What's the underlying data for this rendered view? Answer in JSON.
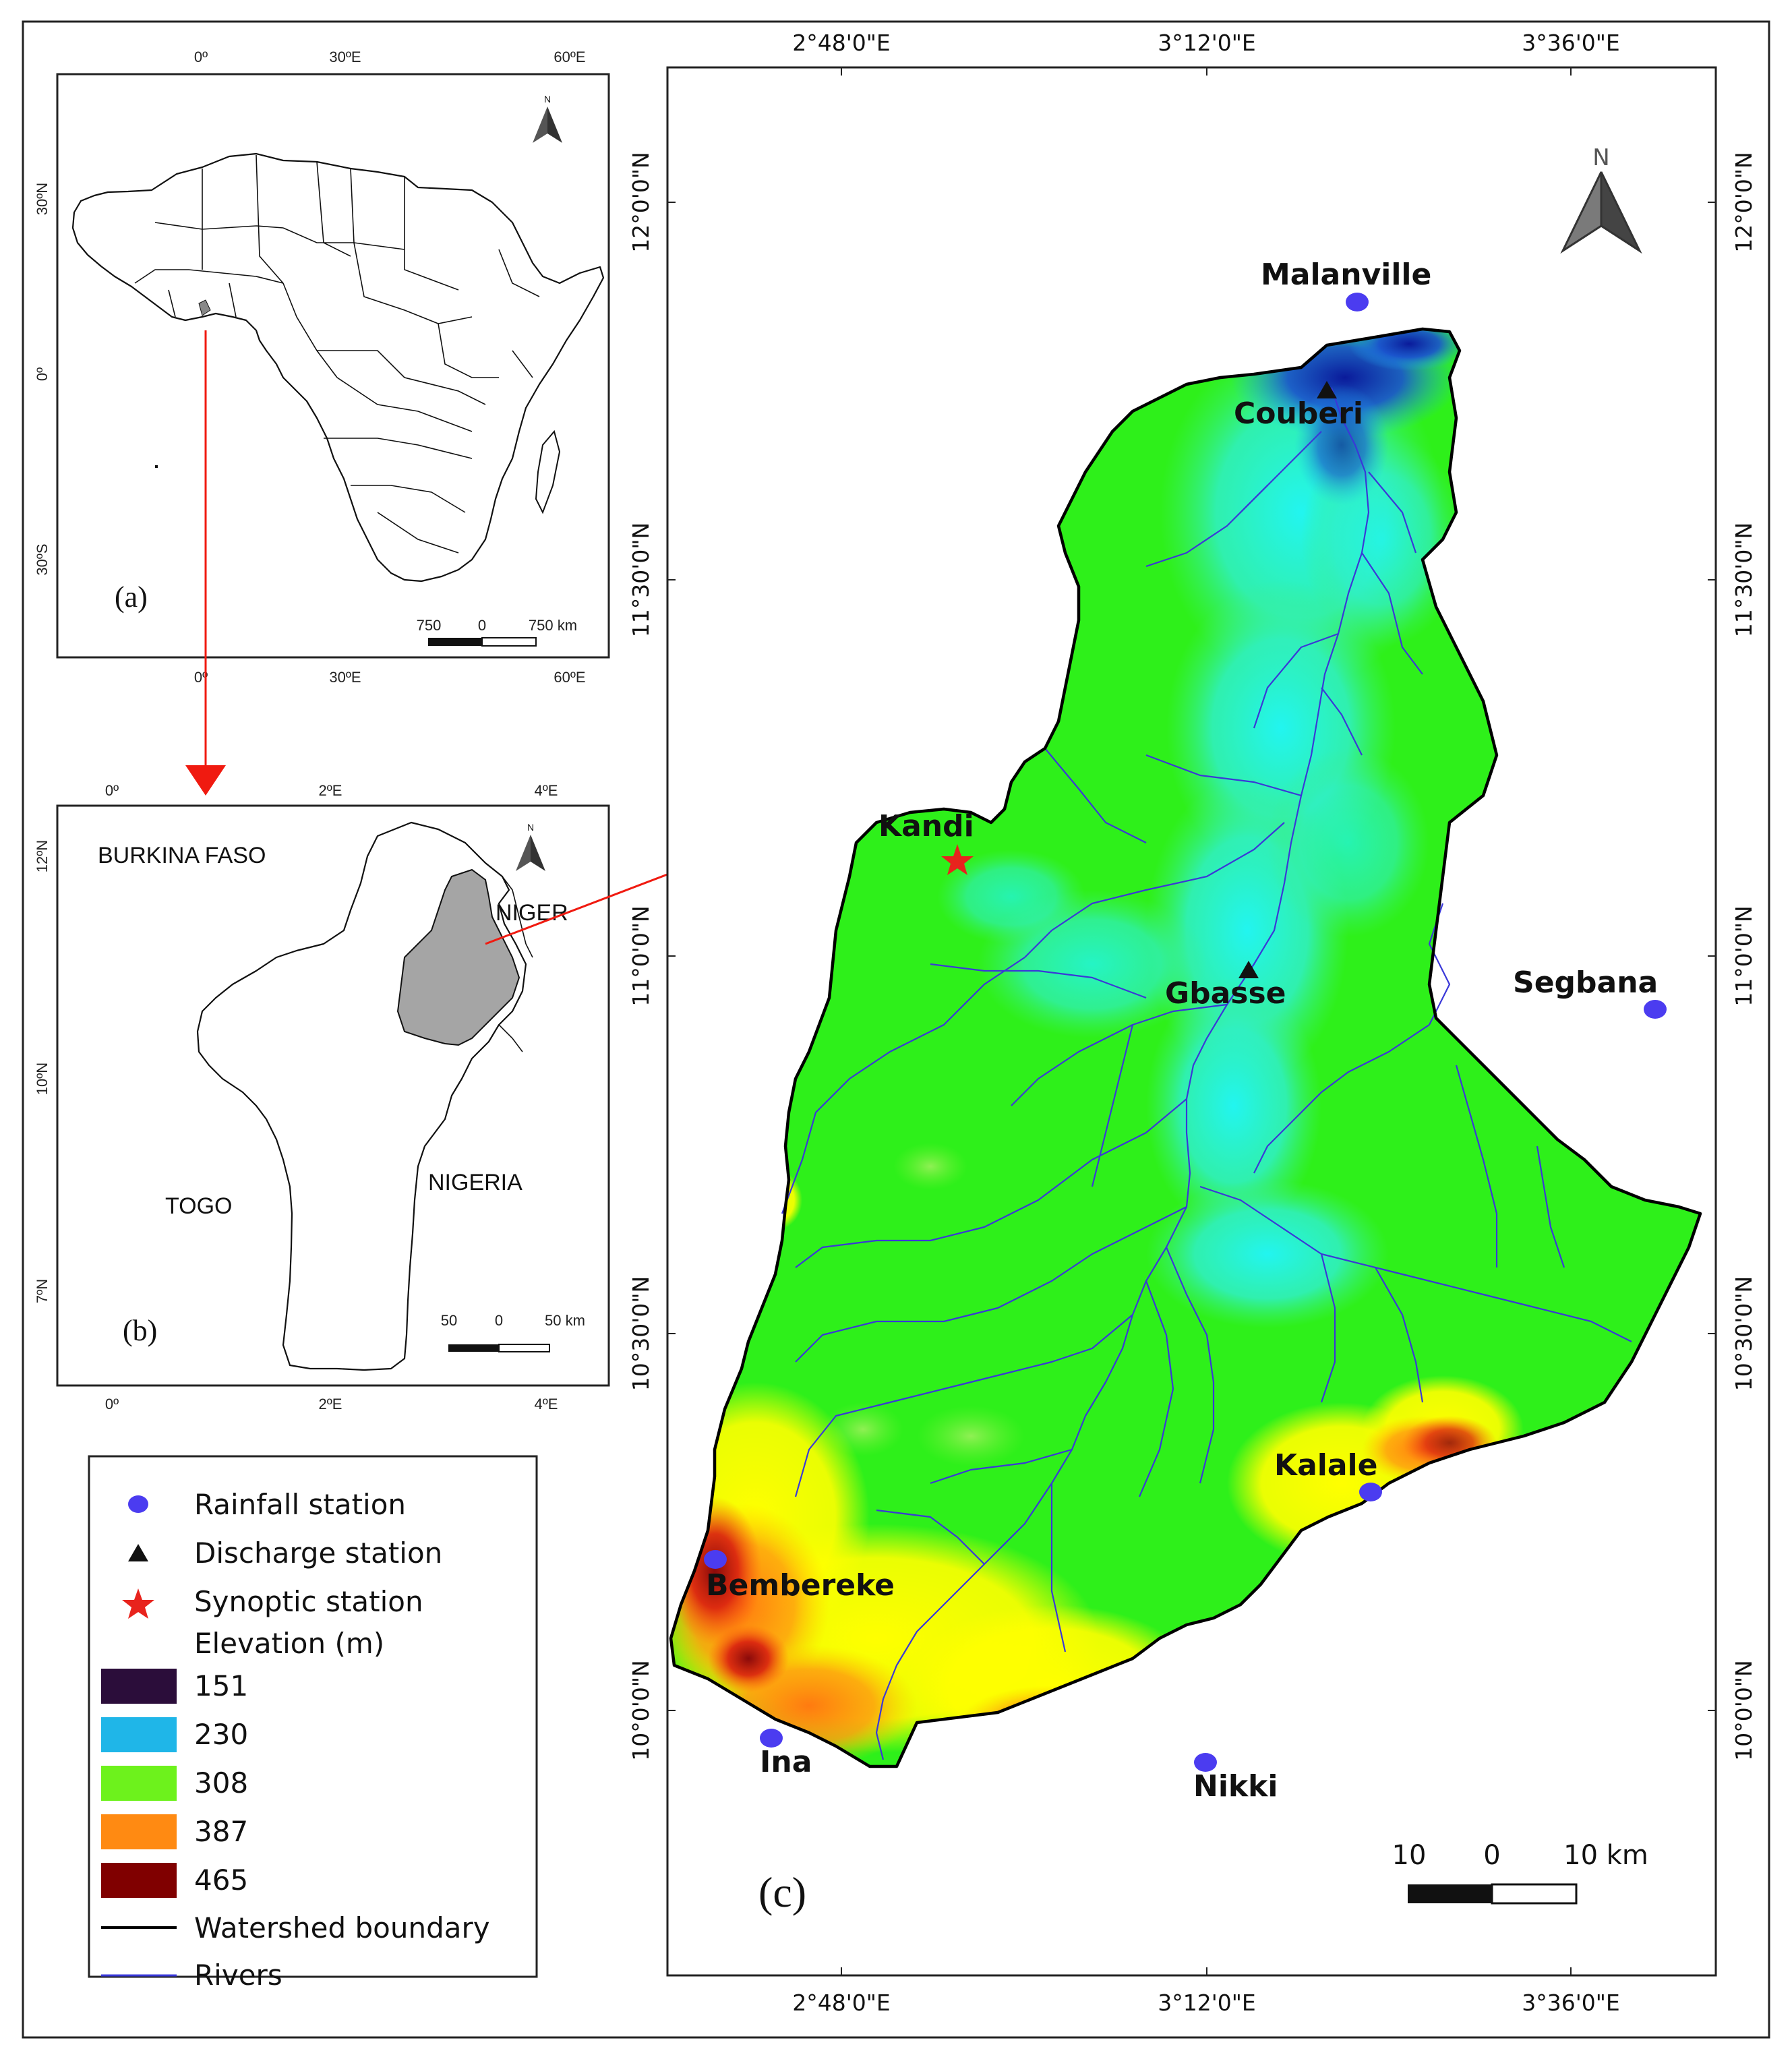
{
  "colors": {
    "elev_151": "#2b0d3a",
    "elev_230": "#1fb6e8",
    "elev_308": "#6df21c",
    "elev_387": "#ff8a12",
    "elev_465": "#800000",
    "rainfall": "#4b3cf0",
    "discharge": "#111111",
    "synoptic": "#e8231d",
    "rivers": "#3a38d8",
    "boundary": "#000000",
    "arrow": "#f01a10",
    "benin_basin": "#a5a5a5"
  },
  "panel_a": {
    "label": "(a)",
    "top_ticks": [
      "0º",
      "30ºE",
      "60ºE"
    ],
    "bottom_ticks": [
      "0º",
      "30ºE",
      "60ºE"
    ],
    "left_ticks": [
      "30ºN",
      "0º",
      "30ºS"
    ],
    "north_label": "N",
    "scale": {
      "left": "750",
      "mid": "0",
      "right": "750 km"
    }
  },
  "panel_b": {
    "label": "(b)",
    "top_ticks": [
      "0º",
      "2ºE",
      "4ºE"
    ],
    "bottom_ticks": [
      "0º",
      "2ºE",
      "4ºE"
    ],
    "left_ticks": [
      "12ºN",
      "10ºN",
      "7ºN"
    ],
    "north_label": "N",
    "countries": {
      "burkina": "BURKINA FASO",
      "niger": "NIGER",
      "togo": "TOGO",
      "nigeria": "NIGERIA"
    },
    "scale": {
      "left": "50",
      "mid": "0",
      "right": "50 km"
    }
  },
  "panel_c": {
    "label": "(c)",
    "top_ticks": [
      "2°48'0\"E",
      "3°12'0\"E",
      "3°36'0\"E"
    ],
    "bottom_ticks": [
      "2°48'0\"E",
      "3°12'0\"E",
      "3°36'0\"E"
    ],
    "left_ticks": [
      "12°0'0\"N",
      "11°30'0\"N",
      "11°0'0\"N",
      "10°30'0\"N",
      "10°0'0\"N"
    ],
    "right_ticks": [
      "12°0'0\"N",
      "11°30'0\"N",
      "11°0'0\"N",
      "10°30'0\"N",
      "10°0'0\"N"
    ],
    "north_label": "N",
    "scale": {
      "left": "10",
      "mid": "0",
      "right": "10 km"
    },
    "stations": {
      "malanville": "Malanville",
      "couberi": "Couberi",
      "kandi": "Kandi",
      "gbasse": "Gbasse",
      "segbana": "Segbana",
      "kalale": "Kalale",
      "bembereke": "Bembereke",
      "ina": "Ina",
      "nikki": "Nikki"
    }
  },
  "legend": {
    "rainfall": "Rainfall station",
    "discharge": "Discharge station",
    "synoptic": "Synoptic station",
    "elevation_title": "Elevation (m)",
    "classes": [
      "151",
      "230",
      "308",
      "387",
      "465"
    ],
    "boundary": "Watershed boundary",
    "rivers": "Rivers"
  }
}
